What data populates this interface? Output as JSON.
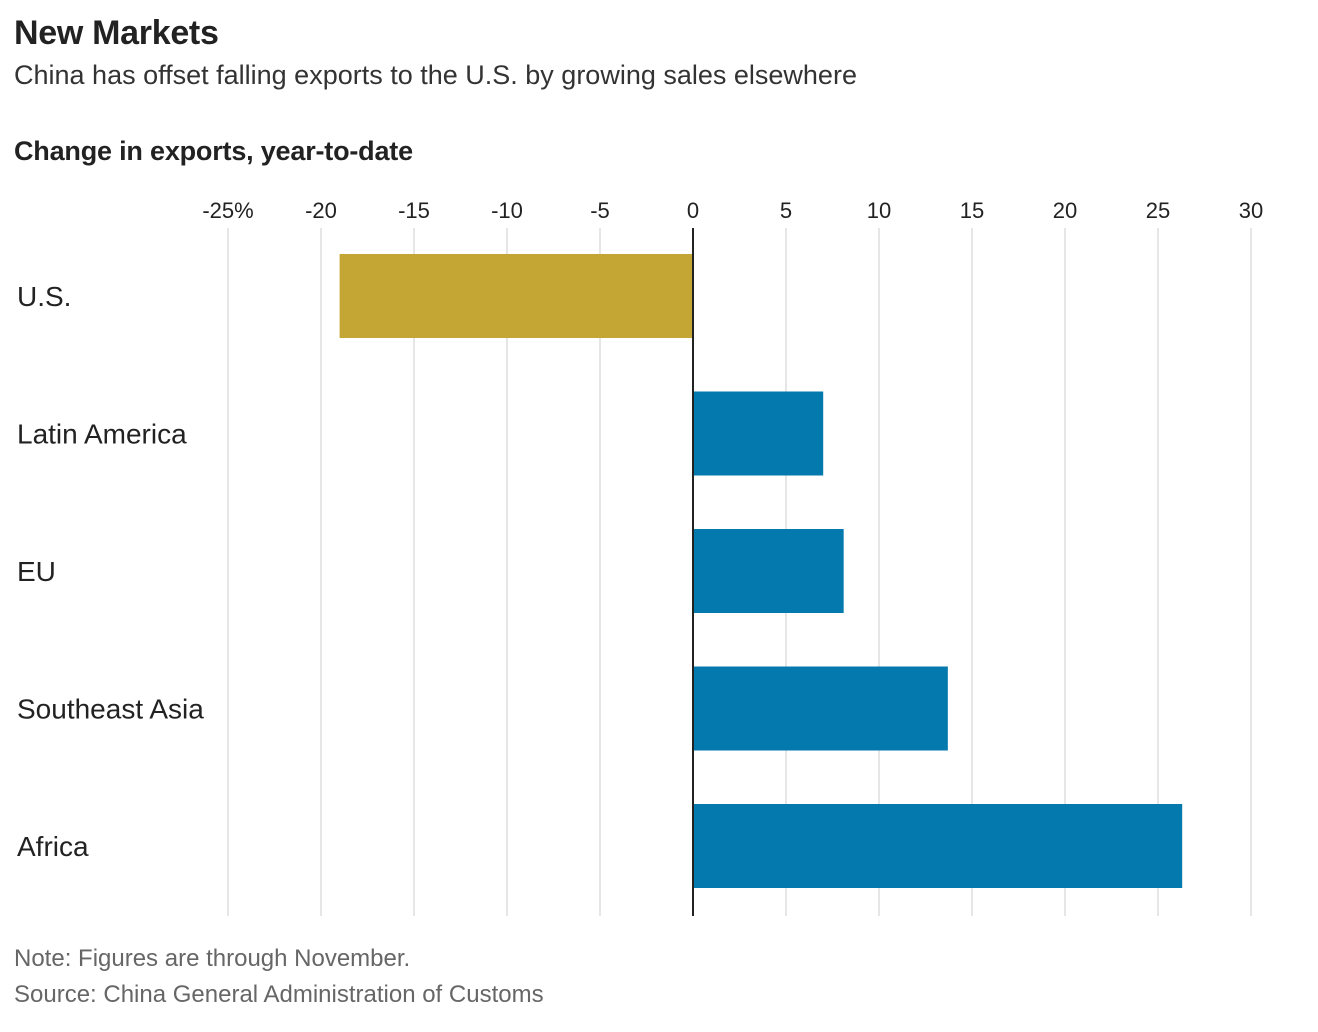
{
  "header": {
    "title": "New Markets",
    "subtitle": "China has offset falling exports to the U.S. by growing sales elsewhere"
  },
  "footer": {
    "note": "Note: Figures are through November.",
    "source": "Source: China General Administration of Customs"
  },
  "colors": {
    "highlight": "#c4a634",
    "bar": "#0379ae",
    "grid": "#dddddd",
    "zero_line": "#222222"
  },
  "chart_data": {
    "type": "bar",
    "orientation": "horizontal",
    "title": "Change in exports, year-to-date",
    "categories": [
      "U.S.",
      "Latin America",
      "EU",
      "Southeast Asia",
      "Africa"
    ],
    "values": [
      -19.0,
      7.0,
      8.1,
      13.7,
      26.3
    ],
    "highlight_index": 0,
    "xlim": [
      -25,
      30
    ],
    "ticks": [
      -25,
      -20,
      -15,
      -10,
      -5,
      0,
      5,
      10,
      15,
      20,
      25,
      30
    ],
    "tick_labels": [
      "-25%",
      "-20",
      "-15",
      "-10",
      "-5",
      "0",
      "5",
      "10",
      "15",
      "20",
      "25",
      "30"
    ],
    "xlabel": "",
    "ylabel": "",
    "grid": true
  }
}
